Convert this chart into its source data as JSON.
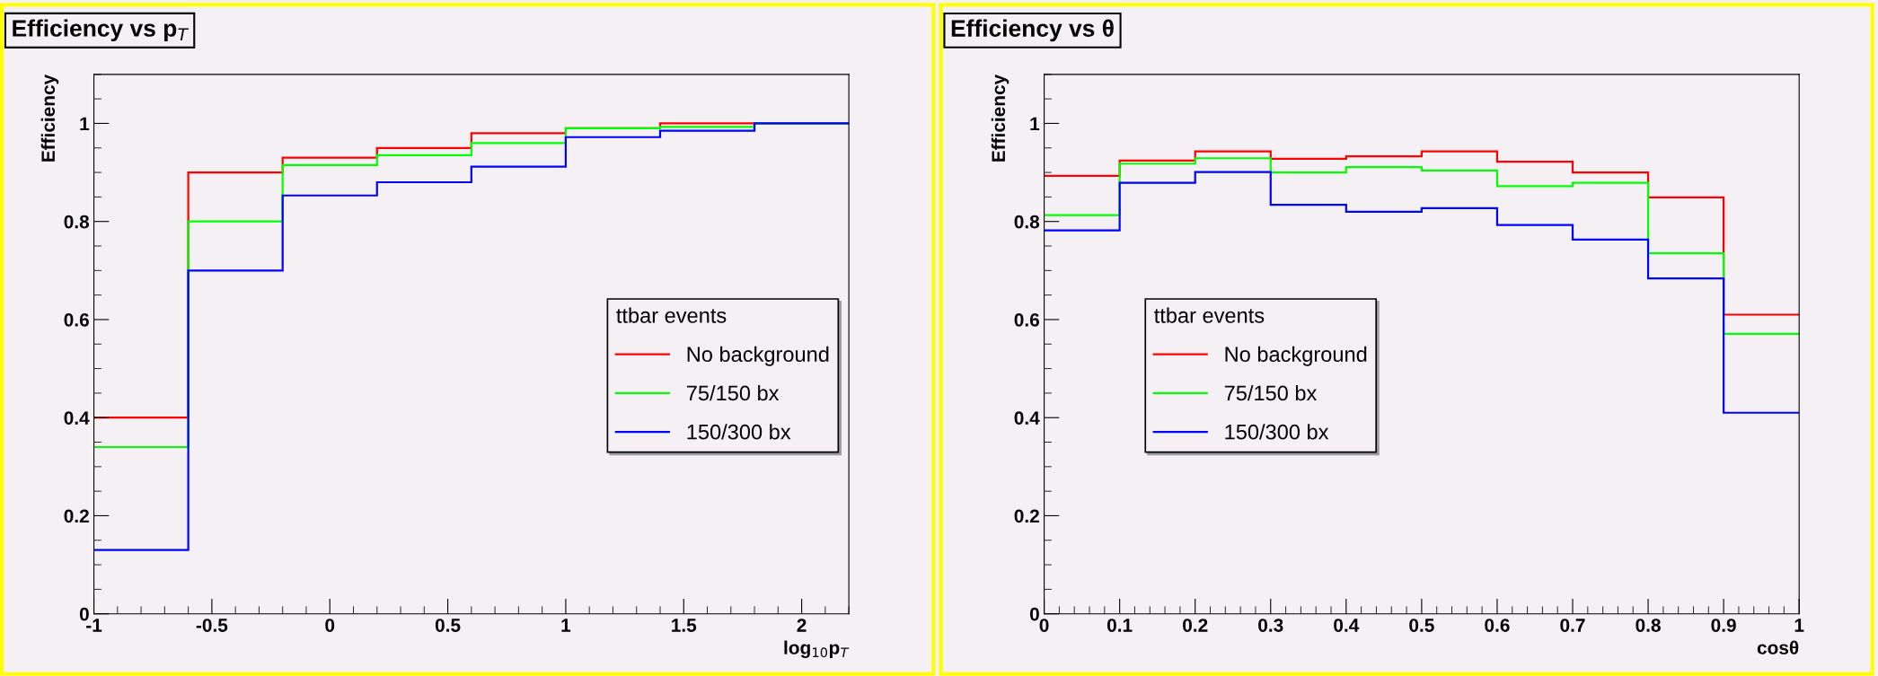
{
  "chart_data": [
    {
      "type": "histogram",
      "title": "Efficiency vs p$_{T}$",
      "xlabel": "log$_{10}$p$_{T}$",
      "ylabel": "Efficiency",
      "legend_title": "ttbar events",
      "legend": "bottom right",
      "grid": false,
      "bins": [
        -1,
        -0.6,
        -0.2,
        0.2,
        0.6,
        1.0,
        1.4,
        1.8,
        2.2
      ],
      "series": [
        {
          "name": "No background",
          "color": "#ff0000",
          "values": [
            0.4,
            0.9,
            0.93,
            0.95,
            0.98,
            0.99,
            1.0,
            1.0
          ]
        },
        {
          "name": "75/150 bx",
          "color": "#00ff00",
          "values": [
            0.34,
            0.8,
            0.915,
            0.935,
            0.96,
            0.99,
            0.993,
            1.0
          ]
        },
        {
          "name": "150/300 bx",
          "color": "#0000ff",
          "values": [
            0.13,
            0.7,
            0.853,
            0.88,
            0.912,
            0.972,
            0.985,
            1.0
          ]
        }
      ],
      "xlim": [
        -1,
        2.2
      ],
      "xticks": [
        -1,
        -0.5,
        0,
        0.5,
        1,
        1.5,
        2
      ],
      "ylim": [
        0,
        1.1
      ],
      "yticks": [
        0,
        0.2,
        0.4,
        0.6,
        0.8,
        1
      ]
    },
    {
      "type": "histogram",
      "title": "Efficiency vs θ",
      "xlabel": "cosθ",
      "ylabel": "Efficiency",
      "legend_title": "ttbar events",
      "legend": "bottom left",
      "grid": false,
      "bins": [
        0,
        0.1,
        0.2,
        0.3,
        0.4,
        0.5,
        0.6,
        0.7,
        0.8,
        0.9,
        1.0
      ],
      "series": [
        {
          "name": "No background",
          "color": "#ff0000",
          "values": [
            0.893,
            0.924,
            0.943,
            0.928,
            0.933,
            0.943,
            0.922,
            0.9,
            0.849,
            0.61
          ]
        },
        {
          "name": "75/150 bx",
          "color": "#00ff00",
          "values": [
            0.813,
            0.918,
            0.929,
            0.9,
            0.911,
            0.904,
            0.872,
            0.879,
            0.735,
            0.571
          ]
        },
        {
          "name": "150/300 bx",
          "color": "#0000ff",
          "values": [
            0.782,
            0.879,
            0.901,
            0.834,
            0.82,
            0.827,
            0.793,
            0.763,
            0.684,
            0.41
          ]
        }
      ],
      "xlim": [
        0,
        1
      ],
      "xticks": [
        0,
        0.1,
        0.2,
        0.3,
        0.4,
        0.5,
        0.6,
        0.7,
        0.8,
        0.9,
        1
      ],
      "ylim": [
        0,
        1.1
      ],
      "yticks": [
        0,
        0.2,
        0.4,
        0.6,
        0.8,
        1
      ]
    }
  ]
}
